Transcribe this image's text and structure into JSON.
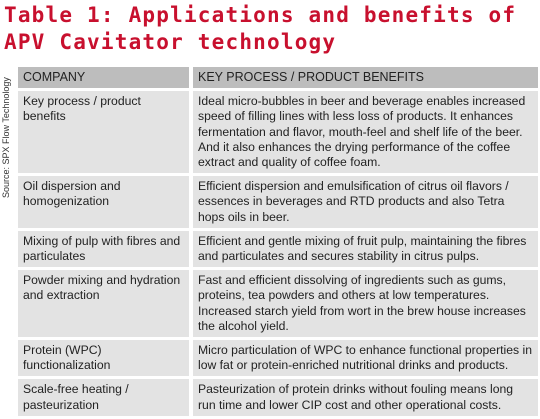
{
  "title": {
    "line1": "Table 1: Applications and benefits of",
    "line2": "APV Cavitator technology"
  },
  "source": "Source: SPX Flow Technology",
  "table": {
    "headers": [
      "COMPANY",
      "KEY PROCESS / PRODUCT BENEFITS"
    ],
    "rows": [
      {
        "company": "Key process / product benefits",
        "benefits": "Ideal micro-bubbles in beer and beverage enables increased speed of filling lines with less loss of products. It enhances fermentation and flavor, mouth-feel and shelf life of the beer.  And it also enhances the drying performance of the coffee extract and quality of coffee foam."
      },
      {
        "company": "Oil dispersion and homogenization",
        "benefits": "Efficient dispersion and emulsification of citrus oil flavors / essences in beverages and RTD products and also Tetra hops oils in beer."
      },
      {
        "company": "Mixing of pulp with fibres and particulates",
        "benefits": "Efficient and gentle mixing of fruit pulp, maintaining the fibres and particulates and secures stability in citrus pulps."
      },
      {
        "company": "Powder mixing and hydration and extraction",
        "benefits": "Fast and efficient dissolving of ingredients such as gums, proteins, tea powders and others at low temperatures. Increased starch yield from wort in the brew house increases the alcohol yield."
      },
      {
        "company": "Protein (WPC) functionalization",
        "benefits": "Micro particulation of WPC to enhance functional properties in low fat or protein-enriched nutritional drinks and products."
      },
      {
        "company": "Scale-free heating / pasteurization",
        "benefits": "Pasteurization of protein drinks without fouling means long run time and lower CIP cost and other operational costs."
      }
    ]
  }
}
